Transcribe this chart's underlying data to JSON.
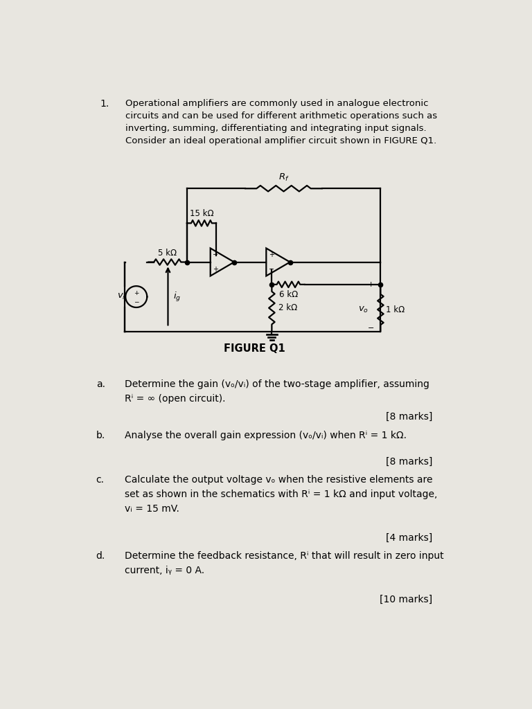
{
  "background_color": "#c8c8c8",
  "paper_color": "#e8e6e0",
  "lw": 1.6,
  "question_number": "1.",
  "intro_text": [
    "Operational amplifiers are commonly used in analogue electronic",
    "circuits and can be used for different arithmetic operations such as",
    "inverting, summing, differentiating and integrating input signals.",
    "Consider an ideal operational amplifier circuit shown in FIGURE Q1."
  ],
  "figure_label": "FIGURE Q1",
  "parts": [
    {
      "label": "a.",
      "lines": [
        "Determine the gain (vₒ/vᵢ) of the two-stage amplifier, assuming",
        "Rⁱ = ∞ (open circuit)."
      ],
      "marks": "[8 marks]"
    },
    {
      "label": "b.",
      "lines": [
        "Analyse the overall gain expression (vₒ/vᵢ) when Rⁱ = 1 kΩ."
      ],
      "marks": "[8 marks]"
    },
    {
      "label": "c.",
      "lines": [
        "Calculate the output voltage vₒ when the resistive elements are",
        "set as shown in the schematics with Rⁱ = 1 kΩ and input voltage,",
        "vᵢ = 15 mV."
      ],
      "marks": "[4 marks]"
    },
    {
      "label": "d.",
      "lines": [
        "Determine the feedback resistance, Rⁱ that will result in zero input",
        "current, iᵧ = 0 A."
      ],
      "marks": "[10 marks]"
    }
  ]
}
